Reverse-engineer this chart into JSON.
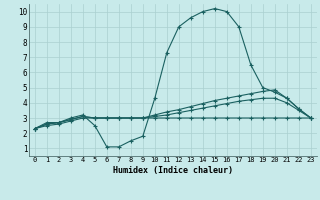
{
  "xlabel": "Humidex (Indice chaleur)",
  "xlim": [
    -0.5,
    23.5
  ],
  "ylim": [
    0.5,
    10.5
  ],
  "xticks": [
    0,
    1,
    2,
    3,
    4,
    5,
    6,
    7,
    8,
    9,
    10,
    11,
    12,
    13,
    14,
    15,
    16,
    17,
    18,
    19,
    20,
    21,
    22,
    23
  ],
  "yticks": [
    1,
    2,
    3,
    4,
    5,
    6,
    7,
    8,
    9,
    10
  ],
  "background_color": "#c8eaea",
  "grid_color": "#aad0d0",
  "line_color": "#1a6060",
  "series": [
    {
      "x": [
        0,
        1,
        2,
        3,
        4,
        5,
        6,
        7,
        8,
        9,
        10,
        11,
        12,
        13,
        14,
        15,
        16,
        17,
        18,
        19,
        20,
        21,
        22,
        23
      ],
      "y": [
        2.3,
        2.7,
        2.7,
        3.0,
        3.2,
        2.5,
        1.1,
        1.1,
        1.5,
        1.8,
        4.3,
        7.3,
        9.0,
        9.6,
        10.0,
        10.2,
        10.0,
        9.0,
        6.5,
        5.0,
        4.7,
        4.3,
        3.6,
        3.0
      ]
    },
    {
      "x": [
        0,
        1,
        2,
        3,
        4,
        5,
        6,
        7,
        8,
        9,
        10,
        11,
        12,
        13,
        14,
        15,
        16,
        17,
        18,
        19,
        20,
        21,
        22,
        23
      ],
      "y": [
        2.3,
        2.6,
        2.7,
        2.9,
        3.1,
        3.0,
        3.0,
        3.0,
        3.0,
        3.0,
        3.2,
        3.4,
        3.55,
        3.75,
        3.95,
        4.15,
        4.3,
        4.45,
        4.6,
        4.75,
        4.85,
        4.3,
        3.6,
        3.0
      ]
    },
    {
      "x": [
        0,
        1,
        2,
        3,
        4,
        5,
        6,
        7,
        8,
        9,
        10,
        11,
        12,
        13,
        14,
        15,
        16,
        17,
        18,
        19,
        20,
        21,
        22,
        23
      ],
      "y": [
        2.3,
        2.6,
        2.7,
        2.9,
        3.1,
        3.0,
        3.0,
        3.0,
        3.0,
        3.0,
        3.1,
        3.2,
        3.35,
        3.5,
        3.65,
        3.8,
        3.95,
        4.1,
        4.2,
        4.3,
        4.3,
        4.0,
        3.5,
        3.0
      ]
    },
    {
      "x": [
        0,
        1,
        2,
        3,
        4,
        5,
        6,
        7,
        8,
        9,
        10,
        11,
        12,
        13,
        14,
        15,
        16,
        17,
        18,
        19,
        20,
        21,
        22,
        23
      ],
      "y": [
        2.3,
        2.5,
        2.6,
        2.8,
        3.0,
        3.0,
        3.0,
        3.0,
        3.0,
        3.0,
        3.0,
        3.0,
        3.0,
        3.0,
        3.0,
        3.0,
        3.0,
        3.0,
        3.0,
        3.0,
        3.0,
        3.0,
        3.0,
        3.0
      ]
    }
  ]
}
